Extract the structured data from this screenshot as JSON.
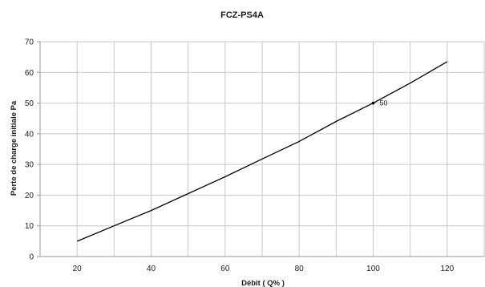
{
  "chart_data": {
    "type": "line",
    "title": "FCZ-PS4A",
    "xlabel": "Débit  ( Q% )",
    "ylabel": "Perte de charge initiale  Pa",
    "x": [
      20,
      30,
      40,
      50,
      60,
      70,
      80,
      90,
      100,
      110,
      120
    ],
    "series": [
      {
        "values": [
          5,
          10,
          15,
          20.5,
          26,
          31.8,
          37.5,
          44,
          50,
          56.5,
          63.5
        ]
      }
    ],
    "xticks": [
      20,
      40,
      60,
      80,
      100,
      120
    ],
    "yticks": [
      0,
      10,
      20,
      30,
      40,
      50,
      60,
      70
    ],
    "xtick_labels": [
      "20",
      "40",
      "60",
      "80",
      "100",
      "120"
    ],
    "ytick_labels": [
      "0",
      "10",
      "20",
      "30",
      "40",
      "50",
      "60",
      "70"
    ],
    "xlim": [
      10,
      130
    ],
    "ylim": [
      0,
      70
    ],
    "x_gridlines": [
      20,
      30,
      40,
      50,
      60,
      70,
      80,
      90,
      100,
      110,
      120,
      130
    ],
    "grid": true,
    "legend": "none",
    "annotations": [
      {
        "x": 100,
        "y": 50,
        "text": "50"
      }
    ]
  }
}
